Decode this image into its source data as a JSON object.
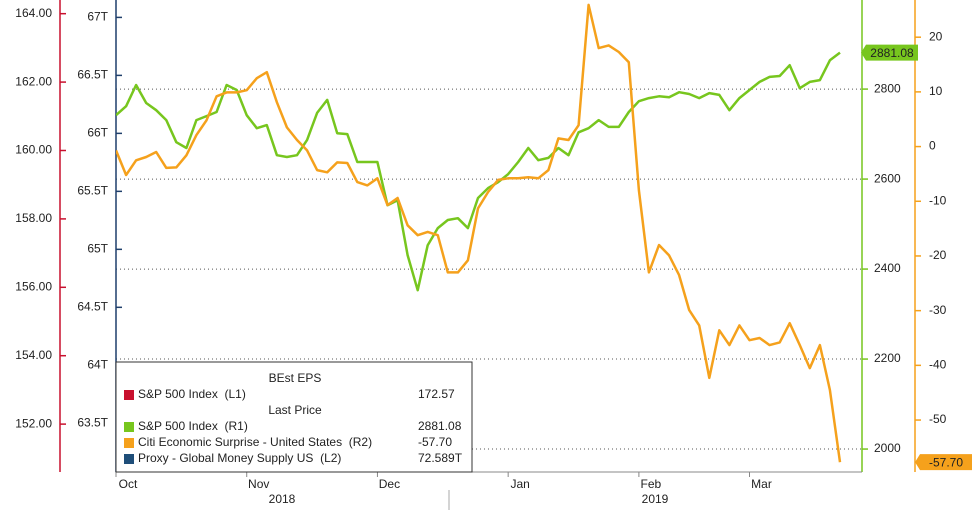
{
  "chart_data": {
    "type": "line",
    "categories": [
      "Oct",
      null,
      null,
      null,
      null,
      null,
      null,
      null,
      null,
      null,
      null,
      null,
      null,
      "Nov",
      null,
      null,
      null,
      null,
      null,
      null,
      null,
      null,
      null,
      null,
      null,
      null,
      "Dec",
      null,
      null,
      null,
      null,
      null,
      null,
      null,
      null,
      null,
      null,
      null,
      null,
      "Jan",
      null,
      null,
      null,
      null,
      null,
      null,
      null,
      null,
      null,
      null,
      null,
      null,
      "Feb",
      null,
      null,
      null,
      null,
      null,
      null,
      null,
      null,
      null,
      null,
      "Mar",
      null,
      null,
      null,
      null,
      null,
      null,
      null,
      null,
      null
    ],
    "years": [
      "2018",
      "2019"
    ],
    "grid": true,
    "grid_axis": "R1",
    "axes": {
      "L1": {
        "color": "#c8102e",
        "ylim": [
          150.6,
          164.4
        ],
        "yticks": [
          {
            "value": 164,
            "label": "164.00"
          },
          {
            "value": 162,
            "label": "162.00"
          },
          {
            "value": 160,
            "label": "160.00"
          },
          {
            "value": 158,
            "label": "158.00"
          },
          {
            "value": 156,
            "label": "156.00"
          },
          {
            "value": 154,
            "label": "154.00"
          },
          {
            "value": 152,
            "label": "152.00"
          }
        ]
      },
      "L2": {
        "color": "#1f3f6b",
        "ylim": [
          63.08,
          67.15
        ],
        "yticks": [
          {
            "value": 67,
            "label": "67T"
          },
          {
            "value": 66.5,
            "label": "66.5T"
          },
          {
            "value": 66,
            "label": "66T"
          },
          {
            "value": 65.5,
            "label": "65.5T"
          },
          {
            "value": 65,
            "label": "65T"
          },
          {
            "value": 64.5,
            "label": "64.5T"
          },
          {
            "value": 64,
            "label": "64T"
          },
          {
            "value": 63.5,
            "label": "63.5T"
          }
        ]
      },
      "R1": {
        "color": "#77c61e",
        "ylim": [
          1949,
          2998
        ],
        "yticks": [
          2000,
          2200,
          2400,
          2600,
          2800
        ]
      },
      "R2": {
        "color": "#f5a11c",
        "ylim": [
          -59.5,
          26.8
        ],
        "yticks": [
          20,
          10,
          0,
          -10,
          -20,
          -30,
          -40,
          -50
        ]
      }
    },
    "legend_groups": [
      "BEst EPS",
      "Last Price"
    ],
    "series": [
      {
        "name": "S&P 500 Index  (L1)",
        "color": "#c8102e",
        "axis": "L1",
        "group": 0,
        "last_value": 172.57
      },
      {
        "name": "S&P 500 Index  (R1)",
        "color": "#77c61e",
        "axis": "R1",
        "group": 1,
        "values": [
          2742,
          2762,
          2809,
          2769,
          2753,
          2731,
          2682,
          2669,
          2731,
          2740,
          2749,
          2809,
          2798,
          2742,
          2713,
          2720,
          2653,
          2649,
          2653,
          2687,
          2747,
          2776,
          2702,
          2700,
          2638,
          2638,
          2638,
          2542,
          2553,
          2431,
          2353,
          2453,
          2491,
          2509,
          2513,
          2491,
          2558,
          2580,
          2593,
          2611,
          2638,
          2669,
          2642,
          2647,
          2669,
          2653,
          2704,
          2713,
          2731,
          2716,
          2716,
          2749,
          2773,
          2780,
          2784,
          2782,
          2793,
          2789,
          2780,
          2791,
          2787,
          2753,
          2780,
          2798,
          2816,
          2827,
          2829,
          2853,
          2802,
          2816,
          2820,
          2864,
          2881.08
        ]
      },
      {
        "name": "Citi Economic Surprise - United States  (R2)",
        "color": "#f5a11c",
        "axis": "R2",
        "group": 1,
        "values": [
          -0.7,
          -5.2,
          -2.5,
          -1.9,
          -1.0,
          -3.9,
          -3.8,
          -1.6,
          2.1,
          4.8,
          9.2,
          9.9,
          9.9,
          10.3,
          12.5,
          13.6,
          8.1,
          3.5,
          1.2,
          -0.7,
          -4.3,
          -4.7,
          -2.9,
          -3.0,
          -6.5,
          -7.1,
          -5.8,
          -10.7,
          -9.4,
          -14.4,
          -16.2,
          -15.6,
          -16.2,
          -23.0,
          -23.0,
          -20.8,
          -11.3,
          -8.3,
          -6.1,
          -5.8,
          -5.8,
          -5.6,
          -5.8,
          -4.3,
          1.5,
          1.2,
          3.9,
          25.9,
          18.0,
          18.5,
          17.3,
          15.4,
          -8.0,
          -23.0,
          -18.0,
          -19.9,
          -23.5,
          -29.9,
          -32.7,
          -42.3,
          -33.6,
          -36.3,
          -32.7,
          -35.4,
          -35.0,
          -36.3,
          -35.8,
          -32.3,
          -36.3,
          -40.5,
          -36.3,
          -44.5,
          -57.7
        ],
        "value_labels": [
          null,
          null,
          null,
          null,
          null,
          null,
          null,
          null,
          null,
          null,
          null,
          null,
          null,
          null,
          null,
          null,
          null,
          null,
          null,
          null,
          null,
          null,
          null,
          null,
          null,
          null,
          null,
          null,
          null,
          null,
          null,
          null,
          null,
          null,
          null,
          null,
          null,
          null,
          null,
          null,
          null,
          null,
          null,
          null,
          null,
          null,
          null,
          null,
          null,
          null,
          null,
          null,
          null,
          null,
          null,
          null,
          null,
          null,
          null,
          null,
          null,
          null,
          null,
          null,
          null,
          null,
          null,
          null,
          null,
          null,
          null,
          null,
          "-57.70"
        ]
      },
      {
        "name": "Proxy - Global Money Supply US  (L2)",
        "color": "#1f4e79",
        "axis": "L2",
        "group": 1,
        "last_value": 72.589,
        "last_label": "72.589T"
      }
    ]
  }
}
